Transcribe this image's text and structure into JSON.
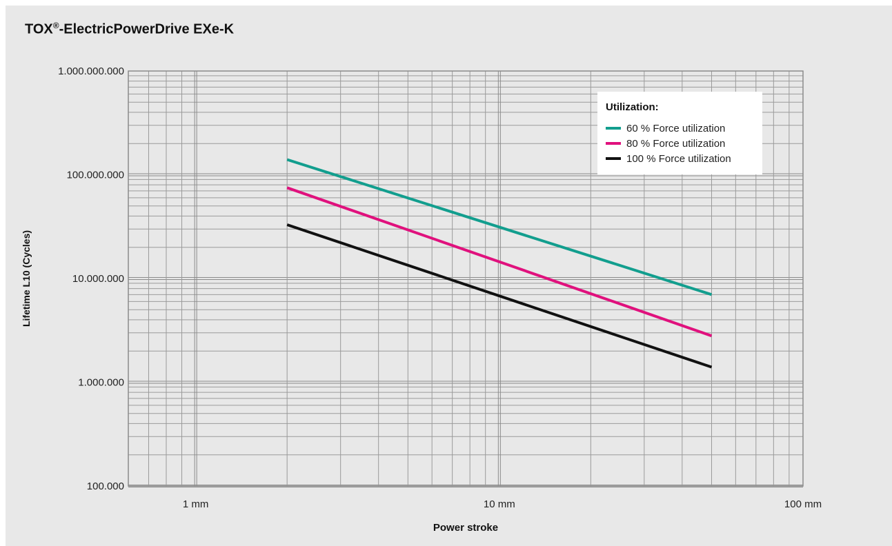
{
  "chart_data": {
    "type": "line",
    "title": "TOX",
    "title_mark": "®",
    "title_suffix": "-ElectricPowerDrive EXe-K",
    "xlabel": "Power stroke",
    "ylabel": "Lifetime L10 (Cycles)",
    "x_scale": "log",
    "y_scale": "log",
    "xlim": [
      0.6,
      100
    ],
    "ylim": [
      100000,
      1000000000
    ],
    "x_ticks": [
      {
        "value": 1,
        "label": "1 mm"
      },
      {
        "value": 10,
        "label": "10 mm"
      },
      {
        "value": 100,
        "label": "100 mm"
      }
    ],
    "y_ticks": [
      {
        "value": 100000,
        "label": "100.000"
      },
      {
        "value": 1000000,
        "label": "1.000.000"
      },
      {
        "value": 10000000,
        "label": "10.000.000"
      },
      {
        "value": 100000000,
        "label": "100.000.000"
      },
      {
        "value": 1000000000,
        "label": "1.000.000.000"
      }
    ],
    "grid": true,
    "legend": {
      "title": "Utilization:",
      "position": "top-right"
    },
    "series": [
      {
        "name": "60 % Force utilization",
        "color": "#129e8e",
        "x": [
          2,
          50
        ],
        "y": [
          140000000,
          7000000
        ]
      },
      {
        "name": "80 % Force utilization",
        "color": "#e0117d",
        "x": [
          2,
          50
        ],
        "y": [
          75000000,
          2800000
        ]
      },
      {
        "name": "100 % Force utilization",
        "color": "#111111",
        "x": [
          2,
          50
        ],
        "y": [
          33000000,
          1400000
        ]
      }
    ]
  }
}
